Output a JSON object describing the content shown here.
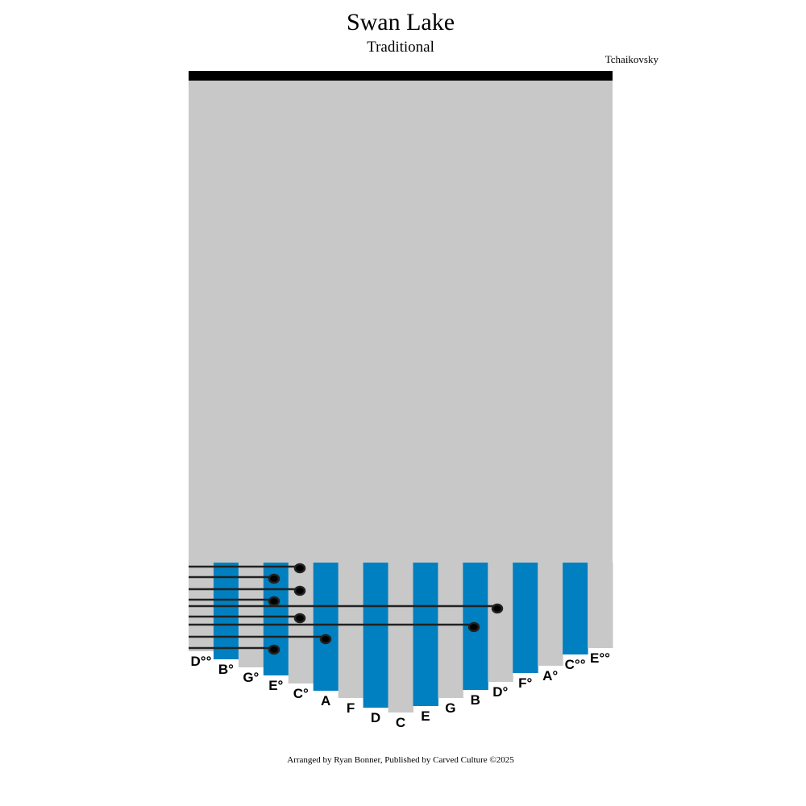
{
  "header": {
    "title": "Swan Lake",
    "subtitle": "Traditional",
    "composer": "Tchaikovsky"
  },
  "keys": [
    "D°°",
    "B°",
    "G°",
    "E°",
    "C°",
    "A",
    "F",
    "D",
    "C",
    "E",
    "G",
    "B",
    "D°",
    "F°",
    "A°",
    "C°°",
    "E°°"
  ],
  "footer": "Arranged by Ryan Bonner, Published by Carved Culture ©2025"
}
